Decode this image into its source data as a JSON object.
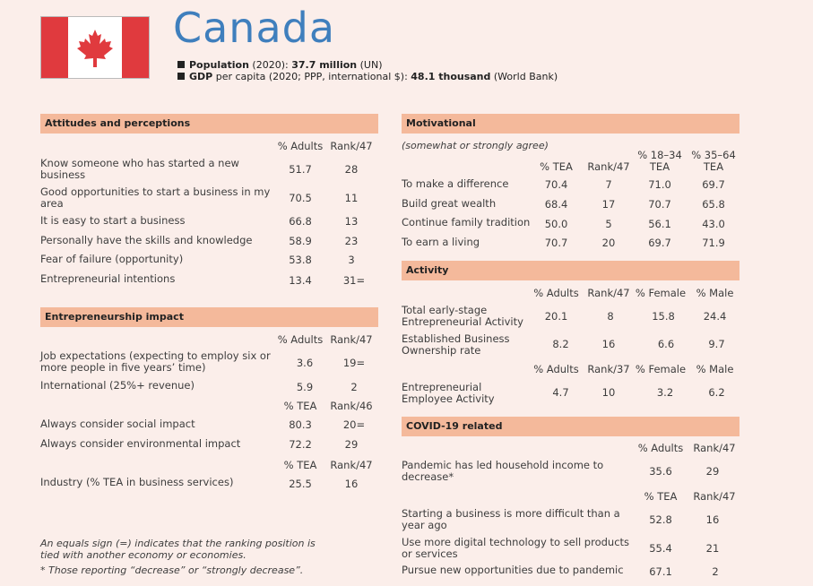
{
  "header": {
    "title": "Canada",
    "population_label": "Population",
    "population_detail": " (2020): ",
    "population_value": "37.7 million",
    "population_source": " (UN)",
    "gdp_label": "GDP",
    "gdp_detail": " per capita (2020; PPP, international $): ",
    "gdp_value": "48.1 thousand",
    "gdp_source": " (World Bank)"
  },
  "attitudes": {
    "title": "Attitudes and perceptions",
    "col1": "% Adults",
    "col2": "Rank/47",
    "rows": [
      {
        "label": "Know someone who has started a new business",
        "v1": "51.7",
        "v2": "28"
      },
      {
        "label": "Good opportunities to start a business in my area",
        "v1": "70.5",
        "v2": "11"
      },
      {
        "label": "It is easy to start a business",
        "v1": "66.8",
        "v2": "13"
      },
      {
        "label": "Personally have the skills and knowledge",
        "v1": "58.9",
        "v2": "23"
      },
      {
        "label": "Fear of failure (opportunity)",
        "v1": "53.8",
        "v2": "3"
      },
      {
        "label": "Entrepreneurial intentions",
        "v1": "13.4",
        "v2": "31="
      }
    ]
  },
  "impact": {
    "title": "Entrepreneurship impact",
    "h1a": "% Adults",
    "h1b": "Rank/47",
    "r1": {
      "label": "Job expectations (expecting to employ six or more people in five years’ time)",
      "v1": "3.6",
      "v2": "19="
    },
    "r2": {
      "label": "International (25%+ revenue)",
      "v1": "5.9",
      "v2": "2"
    },
    "h2a": "% TEA",
    "h2b": "Rank/46",
    "r3": {
      "label": "Always consider social impact",
      "v1": "80.3",
      "v2": "20="
    },
    "r4": {
      "label": "Always consider environmental impact",
      "v1": "72.2",
      "v2": "29"
    },
    "h3a": "% TEA",
    "h3b": "Rank/47",
    "r5": {
      "label": "Industry (% TEA in business services)",
      "v1": "25.5",
      "v2": "16"
    }
  },
  "notes": {
    "n1": "An equals sign (=) indicates that the ranking position is tied with another economy or economies.",
    "n2": "* Those reporting “decrease” or “strongly decrease”."
  },
  "motivational": {
    "title": "Motivational",
    "subtitle": "(somewhat or strongly agree)",
    "c1": "% TEA",
    "c2": "Rank/47",
    "c3": "% 18–34 TEA",
    "c4": "% 35–64 TEA",
    "rows": [
      {
        "label": "To make a difference",
        "v1": "70.4",
        "v2": "7",
        "v3": "71.0",
        "v4": "69.7"
      },
      {
        "label": "Build great wealth",
        "v1": "68.4",
        "v2": "17",
        "v3": "70.7",
        "v4": "65.8"
      },
      {
        "label": "Continue family tradition",
        "v1": "50.0",
        "v2": "5",
        "v3": "56.1",
        "v4": "43.0"
      },
      {
        "label": "To earn a living",
        "v1": "70.7",
        "v2": "20",
        "v3": "69.7",
        "v4": "71.9"
      }
    ]
  },
  "activity": {
    "title": "Activity",
    "h1": [
      "% Adults",
      "Rank/47",
      "% Female",
      "% Male"
    ],
    "r1": {
      "label": "Total early-stage Entrepreneurial Activity",
      "v1": "20.1",
      "v2": "8",
      "v3": "15.8",
      "v4": "24.4"
    },
    "r2": {
      "label": "Established Business Ownership rate",
      "v1": "8.2",
      "v2": "16",
      "v3": "6.6",
      "v4": "9.7"
    },
    "h2": [
      "% Adults",
      "Rank/37",
      "% Female",
      "% Male"
    ],
    "r3": {
      "label": "Entrepreneurial Employee Activity",
      "v1": "4.7",
      "v2": "10",
      "v3": "3.2",
      "v4": "6.2"
    }
  },
  "covid": {
    "title": "COVID-19 related",
    "h1a": "% Adults",
    "h1b": "Rank/47",
    "r1": {
      "label": "Pandemic has led household income to decrease*",
      "v1": "35.6",
      "v2": "29"
    },
    "h2a": "% TEA",
    "h2b": "Rank/47",
    "r2": {
      "label": "Starting a business is more difficult than a year ago",
      "v1": "52.8",
      "v2": "16"
    },
    "r3": {
      "label": "Use more digital technology to sell products or services",
      "v1": "55.4",
      "v2": "21"
    },
    "r4": {
      "label": "Pursue new opportunities due to pandemic",
      "v1": "67.1",
      "v2": "2"
    }
  },
  "colors": {
    "background": "#fbeeea",
    "section_header": "#f4b99b",
    "title_blue": "#3f7fbd",
    "flag_red": "#e03a3e"
  }
}
